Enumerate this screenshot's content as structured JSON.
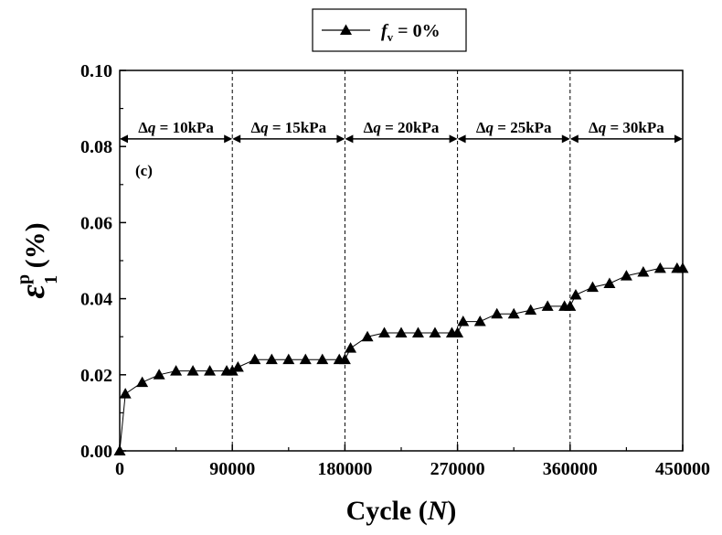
{
  "chart_data": {
    "type": "line",
    "xlabel_main": "Cycle (",
    "xlabel_var": "N",
    "xlabel_end": ")",
    "ylabel_symbol": "ε",
    "ylabel_sup": "p",
    "ylabel_sub": "1",
    "ylabel_unit": " (%)",
    "panel_label": "(c)",
    "legend": {
      "var": "f",
      "sub": "v",
      "text": " = 0%"
    },
    "xlim": [
      0,
      450000
    ],
    "ylim": [
      0,
      0.1
    ],
    "xticks": [
      0,
      90000,
      180000,
      270000,
      360000,
      450000
    ],
    "xtick_labels": [
      "0",
      "90000",
      "180000",
      "270000",
      "360000",
      "450000"
    ],
    "yticks": [
      0,
      0.02,
      0.04,
      0.06,
      0.08,
      0.1
    ],
    "ytick_labels": [
      "0.00",
      "0.02",
      "0.04",
      "0.06",
      "0.08",
      "0.10"
    ],
    "stage_boundaries": [
      90000,
      180000,
      270000,
      360000
    ],
    "stages": [
      {
        "delta": "Δ",
        "var": "q",
        "text": " = 10kPa",
        "start": 0,
        "end": 90000
      },
      {
        "delta": "Δ",
        "var": "q",
        "text": " = 15kPa",
        "start": 90000,
        "end": 180000
      },
      {
        "delta": "Δ",
        "var": "q",
        "text": " = 20kPa",
        "start": 180000,
        "end": 270000
      },
      {
        "delta": "Δ",
        "var": "q",
        "text": " = 25kPa",
        "start": 270000,
        "end": 360000
      },
      {
        "delta": "Δ",
        "var": "q",
        "text": " = 30kPa",
        "start": 360000,
        "end": 450000
      }
    ],
    "series": [
      {
        "marker": "triangle",
        "x": [
          0,
          4500,
          18000,
          31500,
          45000,
          58500,
          72000,
          85500,
          90000,
          94500,
          108000,
          121500,
          135000,
          148500,
          162000,
          175500,
          180000,
          184500,
          198000,
          211500,
          225000,
          238500,
          252000,
          265500,
          270000,
          274500,
          288000,
          301500,
          315000,
          328500,
          342000,
          355500,
          360000,
          364500,
          378000,
          391500,
          405000,
          418500,
          432000,
          445500,
          450000
        ],
        "y": [
          0.0,
          0.015,
          0.018,
          0.02,
          0.021,
          0.021,
          0.021,
          0.021,
          0.021,
          0.022,
          0.024,
          0.024,
          0.024,
          0.024,
          0.024,
          0.024,
          0.024,
          0.027,
          0.03,
          0.031,
          0.031,
          0.031,
          0.031,
          0.031,
          0.031,
          0.034,
          0.034,
          0.036,
          0.036,
          0.037,
          0.038,
          0.038,
          0.038,
          0.041,
          0.043,
          0.044,
          0.046,
          0.047,
          0.048,
          0.048,
          0.048
        ]
      }
    ]
  }
}
